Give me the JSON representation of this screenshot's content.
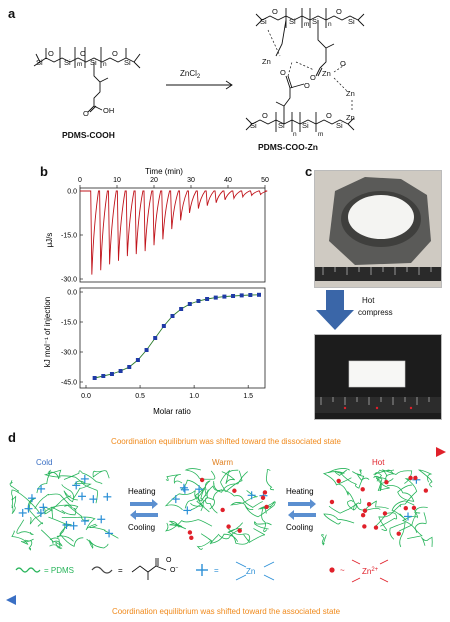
{
  "panels": {
    "a": "a",
    "b": "b",
    "c": "c",
    "d": "d"
  },
  "scheme": {
    "reagent": "ZnCl",
    "reagent_sub": "2",
    "reactant_name": "PDMS-COOH",
    "product_name": "PDMS-COO-Zn",
    "si": "Si",
    "o": "O",
    "zn": "Zn",
    "oh": "OH",
    "m": "m",
    "n": "n"
  },
  "itc": {
    "top_axis_title": "Time (min)",
    "top_ylabel": "μJ/s",
    "bottom_ylabel": "kJ mol⁻¹ of injection",
    "bottom_xlabel": "Molar ratio"
  },
  "photo": {
    "arrow_label_line1": "Hot",
    "arrow_label_line2": "compress"
  },
  "mechanism": {
    "top_banner": "Coordination equilibrium was shifted toward the dissociated state",
    "bottom_banner": "Coordination equilibrium was shifted toward the associated state",
    "state_cold": "Cold",
    "state_warm": "Warm",
    "state_hot": "Hot",
    "heating": "Heating",
    "cooling": "Cooling",
    "legend_pdms": "= PDMS",
    "legend_eq": "=",
    "legend_zn": "Zn",
    "legend_zn_ion": "Zn",
    "legend_zn_charge": "2+",
    "legend_tilde": "~"
  },
  "colors": {
    "itc_trace": "#c0141b",
    "fit_points": "#1f3aa6",
    "fit_line": "#2a7a2a",
    "network_green": "#27b45a",
    "zn_blue": "#2a8fd6",
    "zn_red": "#e0202a",
    "banner_orange": "#f08a1c"
  },
  "chart_data": [
    {
      "type": "line",
      "title": "",
      "xlabel": "Time (min)",
      "ylabel": "μJ/s",
      "xlim": [
        0,
        50
      ],
      "ylim": [
        -30,
        0
      ],
      "xticks": [
        0,
        10,
        20,
        30,
        40,
        50
      ],
      "yticks": [
        0.0,
        -15.0,
        -30.0
      ],
      "ytick_labels": [
        "0.0",
        "-15.0",
        "-30.0"
      ],
      "injection_times": [
        3.2,
        5.6,
        8.0,
        10.4,
        12.8,
        15.2,
        17.6,
        20.0,
        22.4,
        24.8,
        27.2,
        29.6,
        32.0,
        34.4,
        36.8,
        39.2,
        41.6,
        44.0,
        46.4,
        48.8
      ],
      "peak_minima": [
        -28.5,
        -27.0,
        -25.0,
        -23.8,
        -22.2,
        -21.5,
        -20.5,
        -18.5,
        -16.5,
        -13.0,
        -10.0,
        -7.5,
        -6.0,
        -5.0,
        -4.0,
        -3.0,
        -2.5,
        -2.0,
        -1.5,
        -1.2
      ]
    },
    {
      "type": "scatter",
      "title": "",
      "xlabel": "Molar ratio",
      "ylabel": "kJ mol⁻¹ of injection",
      "xlim": [
        0,
        1.6
      ],
      "ylim": [
        -45,
        0
      ],
      "xticks": [
        0.0,
        0.5,
        1.0,
        1.5
      ],
      "xtick_labels": [
        "0.0",
        "0.5",
        "1.0",
        "1.5"
      ],
      "yticks": [
        0.0,
        -15.0,
        -30.0,
        -45.0
      ],
      "ytick_labels": [
        "0.0",
        "-15.0",
        "-30.0",
        "-45.0"
      ],
      "x": [
        0.08,
        0.16,
        0.24,
        0.32,
        0.4,
        0.48,
        0.56,
        0.64,
        0.72,
        0.8,
        0.88,
        0.96,
        1.04,
        1.12,
        1.2,
        1.28,
        1.36,
        1.44,
        1.52,
        1.6
      ],
      "y": [
        -43.0,
        -42.0,
        -41.0,
        -39.5,
        -37.5,
        -34.0,
        -29.0,
        -23.0,
        -17.0,
        -12.0,
        -8.5,
        -6.0,
        -4.5,
        -3.5,
        -2.8,
        -2.3,
        -2.0,
        -1.7,
        -1.5,
        -1.4
      ]
    }
  ]
}
